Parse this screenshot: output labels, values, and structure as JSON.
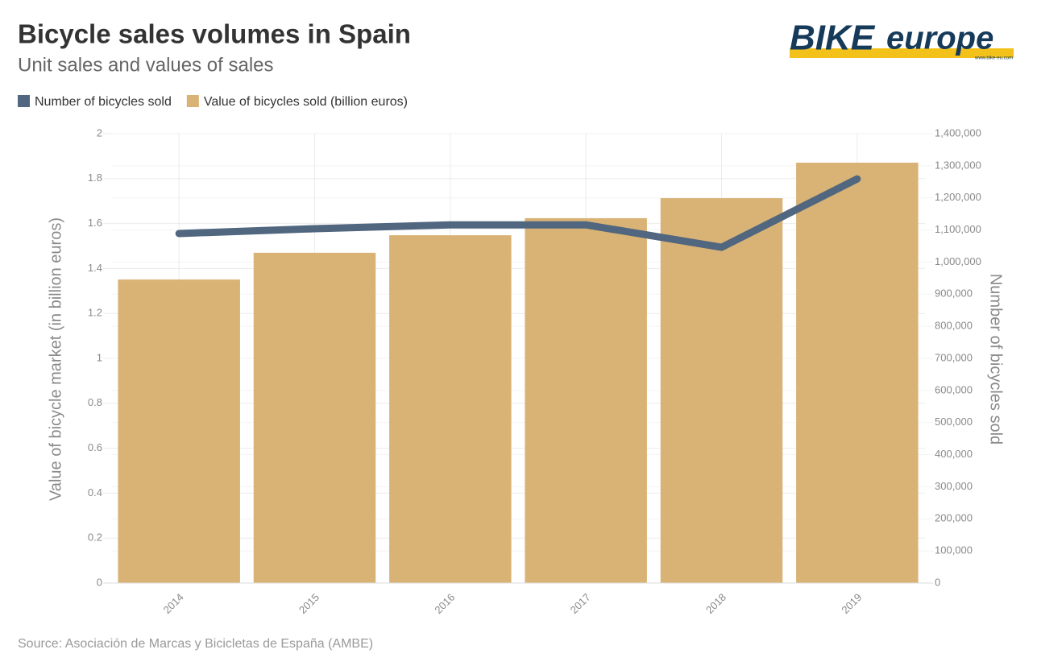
{
  "chart_data": {
    "type": "combo",
    "title": "Bicycle sales volumes in Spain",
    "subtitle": "Unit sales and values of sales",
    "source": "Source: Asociación de Marcas y Bicicletas de España (AMBE)",
    "logo": {
      "brand": "BIKE",
      "brand2": "europe",
      "url": "www.bike-eu.com"
    },
    "ylabel": "Value of bicycle market (in billion euros)",
    "y2label": "Number of bicycles sold",
    "categories": [
      "2014",
      "2015",
      "2016",
      "2017",
      "2018",
      "2019"
    ],
    "series": [
      {
        "name": "Number of bicycles sold",
        "color": "#51667f",
        "type": "line",
        "axis": "y2",
        "values": [
          1089000,
          1104000,
          1116000,
          1116000,
          1046000,
          1259000
        ]
      },
      {
        "name": "Value of bicycles sold (billion euros)",
        "color": "#d9b376",
        "type": "bar",
        "values": [
          1.351,
          1.47,
          1.548,
          1.624,
          1.713,
          1.871
        ]
      }
    ],
    "ylim": [
      0,
      2
    ],
    "yticks": [
      0,
      0.2,
      0.4,
      0.6,
      0.8,
      1,
      1.2,
      1.4,
      1.6,
      1.8,
      2
    ],
    "y2lim": [
      0,
      1400000
    ],
    "y2ticks": [
      0,
      {
        "value": 100000,
        "label": "100,000"
      },
      {
        "value": 200000,
        "label": "200,000"
      },
      {
        "value": 300000,
        "label": "300,000"
      },
      {
        "value": 400000,
        "label": "400,000"
      },
      {
        "value": 500000,
        "label": "500,000"
      },
      {
        "value": 600000,
        "label": "600,000"
      },
      {
        "value": 700000,
        "label": "700,000"
      },
      {
        "value": 800000,
        "label": "800,000"
      },
      {
        "value": 900000,
        "label": "900,000"
      },
      {
        "value": 1000000,
        "label": "1,000,000"
      },
      {
        "value": 1100000,
        "label": "1,100,000"
      },
      {
        "value": 1200000,
        "label": "1,200,000"
      },
      {
        "value": 1300000,
        "label": "1,300,000"
      },
      {
        "value": 1400000,
        "label": "1,400,000"
      }
    ],
    "grid": true
  }
}
